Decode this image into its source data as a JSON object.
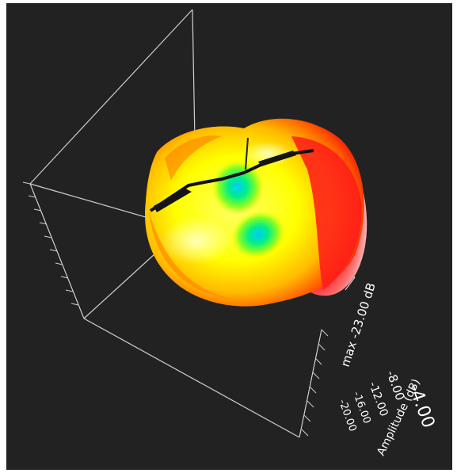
{
  "viewer": {
    "background_color": "#222222",
    "scale_max_label": "max -23.00 dB",
    "scale_ticks": [
      "-4.00",
      "-8.00",
      "-12.00",
      "-16.00",
      "-20.00"
    ],
    "axis_label": "Amplitude (dB)"
  },
  "pattern": {
    "colormap": [
      "#ff0000",
      "#ff9900",
      "#ffff00",
      "#00ff66",
      "#00ccff"
    ]
  }
}
